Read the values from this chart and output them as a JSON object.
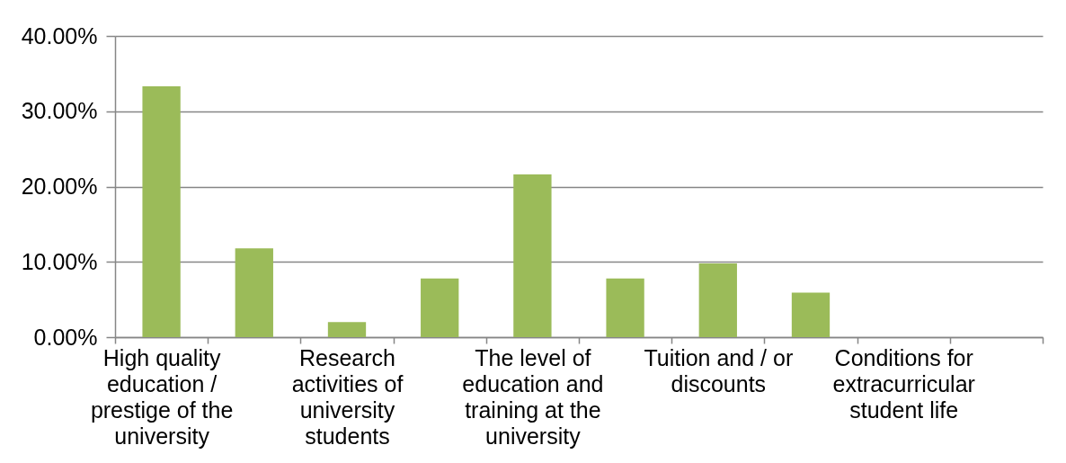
{
  "chart_data": {
    "type": "bar",
    "categories": [
      "High quality education / prestige of the university",
      null,
      "Research activities of university students",
      null,
      "The level of education and training at the university",
      null,
      "Tuition and / or discounts",
      null,
      "Conditions for extracurricular student life",
      null
    ],
    "values": [
      33.3,
      11.8,
      2.0,
      7.8,
      21.6,
      7.8,
      9.8,
      5.9,
      0,
      0
    ],
    "color": "#9bbb59",
    "ylim": [
      0,
      40
    ],
    "yticks": [
      {
        "value": 0,
        "label": "0.00%"
      },
      {
        "value": 10,
        "label": "10.00%"
      },
      {
        "value": 20,
        "label": "20.00%"
      },
      {
        "value": 30,
        "label": "30.00%"
      },
      {
        "value": 40,
        "label": "40.00%"
      }
    ],
    "grid": "y"
  }
}
